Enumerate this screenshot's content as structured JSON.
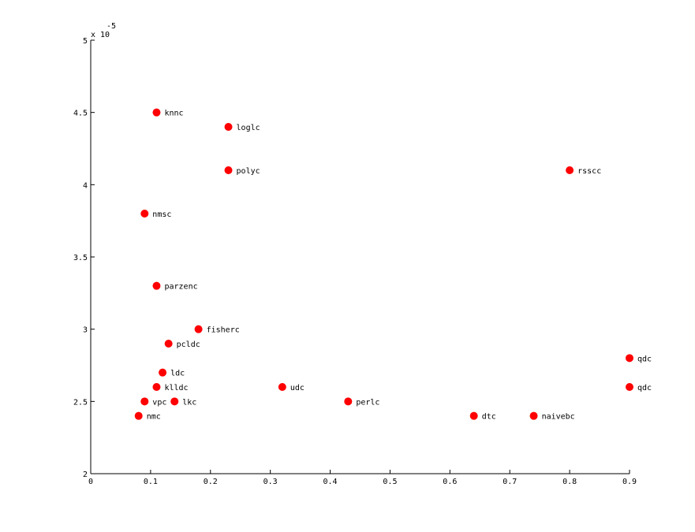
{
  "chart_data": {
    "type": "scatter",
    "title": "",
    "xlabel": "",
    "ylabel": "",
    "xlim": [
      0,
      0.9
    ],
    "ylim": [
      2,
      5
    ],
    "y_multiplier_text": "x 10",
    "y_multiplier_exponent": "-5",
    "x_ticks": [
      "0",
      "0.1",
      "0.2",
      "0.3",
      "0.4",
      "0.5",
      "0.6",
      "0.7",
      "0.8",
      "0.9"
    ],
    "y_ticks": [
      "2",
      "2.5",
      "3",
      "3.5",
      "4",
      "4.5",
      "5"
    ],
    "grid": false,
    "legend": "none",
    "marker_color": "#ff0000",
    "points": [
      {
        "label": "knnc",
        "x": 0.11,
        "y": 4.5
      },
      {
        "label": "loglc",
        "x": 0.23,
        "y": 4.4
      },
      {
        "label": "polyc",
        "x": 0.23,
        "y": 4.1
      },
      {
        "label": "rsscc",
        "x": 0.8,
        "y": 4.1
      },
      {
        "label": "nmsc",
        "x": 0.09,
        "y": 3.8
      },
      {
        "label": "parzenc",
        "x": 0.11,
        "y": 3.3
      },
      {
        "label": "fisherc",
        "x": 0.18,
        "y": 3.0
      },
      {
        "label": "pcldc",
        "x": 0.13,
        "y": 2.9
      },
      {
        "label": "qdc",
        "x": 0.9,
        "y": 2.8
      },
      {
        "label": "ldc",
        "x": 0.12,
        "y": 2.7
      },
      {
        "label": "klldc",
        "x": 0.11,
        "y": 2.6
      },
      {
        "label": "udc",
        "x": 0.32,
        "y": 2.6
      },
      {
        "label": "qdc",
        "x": 0.9,
        "y": 2.6
      },
      {
        "label": "vpc",
        "x": 0.09,
        "y": 2.5
      },
      {
        "label": "lkc",
        "x": 0.14,
        "y": 2.5
      },
      {
        "label": "perlc",
        "x": 0.43,
        "y": 2.5
      },
      {
        "label": "nmc",
        "x": 0.08,
        "y": 2.4
      },
      {
        "label": "dtc",
        "x": 0.64,
        "y": 2.4
      },
      {
        "label": "naivebc",
        "x": 0.74,
        "y": 2.4
      }
    ]
  }
}
